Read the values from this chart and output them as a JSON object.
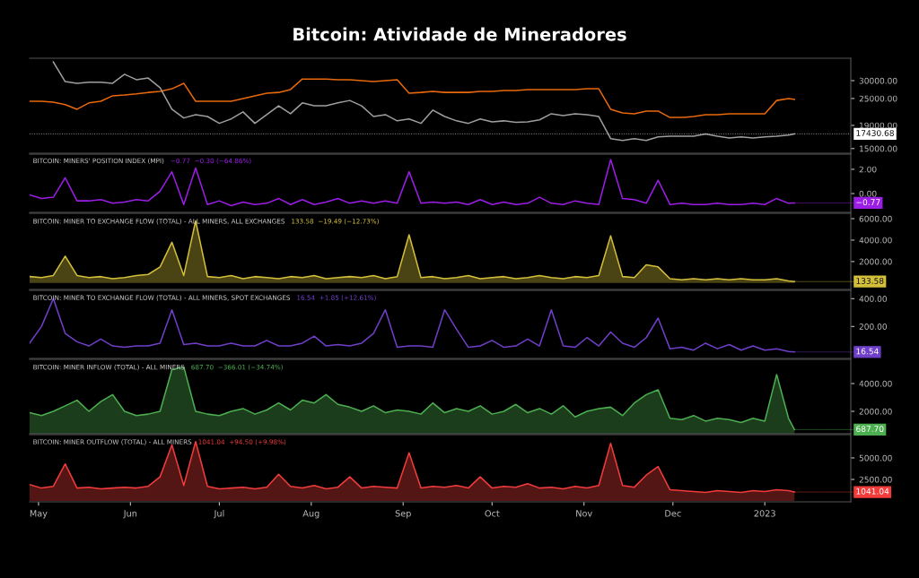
{
  "chart_data": [
    {
      "type": "line",
      "title": "Bitcoin: Atividade de Mineradores",
      "log": "y",
      "x": [
        "2022-04-28",
        "2022-05-02",
        "2022-05-06",
        "2022-05-10",
        "2022-05-14",
        "2022-05-18",
        "2022-05-22",
        "2022-05-26",
        "2022-05-30",
        "2022-06-03",
        "2022-06-07",
        "2022-06-11",
        "2022-06-15",
        "2022-06-19",
        "2022-06-23",
        "2022-06-27",
        "2022-07-01",
        "2022-07-05",
        "2022-07-09",
        "2022-07-13",
        "2022-07-17",
        "2022-07-21",
        "2022-07-25",
        "2022-07-29",
        "2022-08-02",
        "2022-08-06",
        "2022-08-10",
        "2022-08-14",
        "2022-08-18",
        "2022-08-22",
        "2022-08-26",
        "2022-08-30",
        "2022-09-03",
        "2022-09-07",
        "2022-09-11",
        "2022-09-15",
        "2022-09-19",
        "2022-09-23",
        "2022-09-27",
        "2022-10-01",
        "2022-10-05",
        "2022-10-09",
        "2022-10-13",
        "2022-10-17",
        "2022-10-21",
        "2022-10-25",
        "2022-10-29",
        "2022-11-02",
        "2022-11-06",
        "2022-11-10",
        "2022-11-14",
        "2022-11-18",
        "2022-11-22",
        "2022-11-26",
        "2022-11-30",
        "2022-12-04",
        "2022-12-08",
        "2022-12-12",
        "2022-12-16",
        "2022-12-20",
        "2022-12-24",
        "2022-12-28",
        "2023-01-01",
        "2023-01-05",
        "2023-01-09",
        "2023-01-11"
      ],
      "series": [
        {
          "color": "#e8680c",
          "values": [
            24300,
            24300,
            24100,
            23500,
            22400,
            23900,
            24300,
            25700,
            25900,
            26200,
            26600,
            26900,
            27600,
            29200,
            24300,
            24300,
            24300,
            24300,
            25000,
            25700,
            26400,
            26600,
            27400,
            30500,
            30500,
            30500,
            30300,
            30300,
            30000,
            29700,
            30000,
            30300,
            26400,
            26600,
            26900,
            26600,
            26600,
            26600,
            26900,
            26900,
            27100,
            27100,
            27400,
            27400,
            27400,
            27400,
            27400,
            27600,
            27600,
            22400,
            21600,
            21400,
            22000,
            22000,
            20600,
            20600,
            20800,
            21200,
            21200,
            21400,
            21400,
            21400,
            21400,
            24500,
            25000,
            24800
          ]
        },
        {
          "color": "#9e9e9e",
          "values": [
            null,
            null,
            36300,
            29700,
            29200,
            29500,
            29500,
            29200,
            32000,
            30300,
            30800,
            27900,
            22400,
            20500,
            21200,
            20800,
            19400,
            20300,
            21800,
            19400,
            21200,
            23200,
            21400,
            23900,
            23200,
            23200,
            23900,
            24500,
            23200,
            20800,
            21200,
            19900,
            20300,
            19400,
            22200,
            20800,
            19900,
            19400,
            20300,
            19700,
            19900,
            19600,
            19700,
            20100,
            21400,
            21000,
            21400,
            21200,
            20800,
            16600,
            16300,
            16600,
            16300,
            16900,
            17000,
            17000,
            17000,
            17400,
            17000,
            16700,
            16900,
            16700,
            16900,
            17000,
            17200,
            17430.68
          ]
        }
      ],
      "xlim": [
        "2022-04-28",
        "2023-01-30"
      ],
      "ylim": [
        14300,
        37700
      ],
      "yticks": [
        {
          "value": 30000,
          "label": "30000.00"
        },
        {
          "value": 25000,
          "label": "25000.00"
        },
        {
          "value": 19000,
          "label": "19000.00"
        },
        {
          "value": 15000,
          "label": "15000.00"
        }
      ],
      "ref_lines": [
        {
          "axis": "y",
          "value": 17430.68,
          "label": "17430.68",
          "color": "#ffffff",
          "line_style": "dotted"
        }
      ],
      "tick_labels": "y"
    },
    {
      "type": "line",
      "title": "BITCOIN: MINERS' POSITION INDEX (MPI)",
      "subtitle": "−0.77  −0.30 (−64.86%)",
      "color": "#9c1de6",
      "x": [
        "2022-04-28",
        "2022-05-02",
        "2022-05-06",
        "2022-05-10",
        "2022-05-14",
        "2022-05-18",
        "2022-05-22",
        "2022-05-26",
        "2022-05-30",
        "2022-06-03",
        "2022-06-07",
        "2022-06-11",
        "2022-06-15",
        "2022-06-19",
        "2022-06-23",
        "2022-06-27",
        "2022-07-01",
        "2022-07-05",
        "2022-07-09",
        "2022-07-13",
        "2022-07-17",
        "2022-07-21",
        "2022-07-25",
        "2022-07-29",
        "2022-08-02",
        "2022-08-06",
        "2022-08-10",
        "2022-08-14",
        "2022-08-18",
        "2022-08-22",
        "2022-08-26",
        "2022-08-30",
        "2022-09-03",
        "2022-09-07",
        "2022-09-11",
        "2022-09-15",
        "2022-09-19",
        "2022-09-23",
        "2022-09-27",
        "2022-10-01",
        "2022-10-05",
        "2022-10-09",
        "2022-10-13",
        "2022-10-17",
        "2022-10-21",
        "2022-10-25",
        "2022-10-29",
        "2022-11-02",
        "2022-11-06",
        "2022-11-10",
        "2022-11-14",
        "2022-11-18",
        "2022-11-22",
        "2022-11-26",
        "2022-11-30",
        "2022-12-04",
        "2022-12-08",
        "2022-12-12",
        "2022-12-16",
        "2022-12-20",
        "2022-12-24",
        "2022-12-28",
        "2023-01-01",
        "2023-01-05",
        "2023-01-09",
        "2023-01-11"
      ],
      "values": [
        -0.1,
        -0.4,
        -0.3,
        1.3,
        -0.6,
        -0.6,
        -0.5,
        -0.8,
        -0.7,
        -0.5,
        -0.6,
        0.2,
        1.8,
        -0.9,
        2.1,
        -0.9,
        -0.6,
        -1.0,
        -0.7,
        -0.9,
        -0.8,
        -0.4,
        -0.9,
        -0.5,
        -0.9,
        -0.7,
        -0.4,
        -0.8,
        -0.6,
        -0.8,
        -0.6,
        -0.8,
        1.8,
        -0.8,
        -0.7,
        -0.8,
        -0.7,
        -0.9,
        -0.5,
        -0.9,
        -0.7,
        -0.9,
        -0.8,
        -0.3,
        -0.8,
        -0.9,
        -0.6,
        -0.8,
        -0.9,
        2.8,
        -0.4,
        -0.5,
        -0.8,
        1.1,
        -0.9,
        -0.8,
        -0.9,
        -0.9,
        -0.8,
        -0.9,
        -0.9,
        -0.8,
        -0.9,
        -0.4,
        -0.8,
        -0.77
      ],
      "xlim": [
        "2022-04-28",
        "2023-01-30"
      ],
      "ylim": [
        -1.55,
        3.25
      ],
      "yticks": [
        {
          "value": 2,
          "label": "2.00"
        },
        {
          "value": 0,
          "label": "0.00"
        }
      ],
      "annotations": [
        {
          "text": "−0.77",
          "x": "2023-01-11",
          "y": -0.77
        }
      ],
      "tick_labels": "y"
    },
    {
      "type": "area",
      "title": "BITCOIN: MINER TO EXCHANGE FLOW (TOTAL) - ALL MINERS, ALL EXCHANGES",
      "subtitle": "133.58  −19.49 (−12.73%)",
      "color": "#d4bf3a",
      "x": [
        "2022-04-28",
        "2022-05-02",
        "2022-05-06",
        "2022-05-10",
        "2022-05-14",
        "2022-05-18",
        "2022-05-22",
        "2022-05-26",
        "2022-05-30",
        "2022-06-03",
        "2022-06-07",
        "2022-06-11",
        "2022-06-15",
        "2022-06-19",
        "2022-06-23",
        "2022-06-27",
        "2022-07-01",
        "2022-07-05",
        "2022-07-09",
        "2022-07-13",
        "2022-07-17",
        "2022-07-21",
        "2022-07-25",
        "2022-07-29",
        "2022-08-02",
        "2022-08-06",
        "2022-08-10",
        "2022-08-14",
        "2022-08-18",
        "2022-08-22",
        "2022-08-26",
        "2022-08-30",
        "2022-09-03",
        "2022-09-07",
        "2022-09-11",
        "2022-09-15",
        "2022-09-19",
        "2022-09-23",
        "2022-09-27",
        "2022-10-01",
        "2022-10-05",
        "2022-10-09",
        "2022-10-13",
        "2022-10-17",
        "2022-10-21",
        "2022-10-25",
        "2022-10-29",
        "2022-11-02",
        "2022-11-06",
        "2022-11-10",
        "2022-11-14",
        "2022-11-18",
        "2022-11-22",
        "2022-11-26",
        "2022-11-30",
        "2022-12-04",
        "2022-12-08",
        "2022-12-12",
        "2022-12-16",
        "2022-12-20",
        "2022-12-24",
        "2022-12-28",
        "2023-01-01",
        "2023-01-05",
        "2023-01-09",
        "2023-01-11"
      ],
      "values": [
        600,
        500,
        700,
        2500,
        700,
        500,
        600,
        400,
        500,
        700,
        800,
        1500,
        3800,
        700,
        5800,
        600,
        500,
        700,
        400,
        600,
        500,
        400,
        600,
        500,
        700,
        400,
        500,
        600,
        500,
        700,
        400,
        600,
        4500,
        500,
        600,
        400,
        500,
        700,
        400,
        500,
        600,
        400,
        500,
        700,
        500,
        400,
        600,
        500,
        700,
        4400,
        600,
        500,
        1700,
        1500,
        400,
        300,
        400,
        300,
        400,
        300,
        400,
        300,
        300,
        400,
        200,
        133.58
      ],
      "xlim": [
        "2022-04-28",
        "2023-01-30"
      ],
      "ylim": [
        -600,
        6500
      ],
      "yticks": [
        {
          "value": 6000,
          "label": "6000.00"
        },
        {
          "value": 4000,
          "label": "4000.00"
        },
        {
          "value": 2000,
          "label": "2000.00"
        }
      ],
      "annotations": [
        {
          "text": "133.58",
          "x": "2023-01-11",
          "y": 133.58
        }
      ],
      "tick_labels": "y"
    },
    {
      "type": "line",
      "title": "BITCOIN: MINER TO EXCHANGE FLOW (TOTAL) - ALL MINERS, SPOT EXCHANGES",
      "subtitle": "16.54  +1.85 (+12.61%)",
      "color": "#6f3fc9",
      "x": [
        "2022-04-28",
        "2022-05-02",
        "2022-05-06",
        "2022-05-10",
        "2022-05-14",
        "2022-05-18",
        "2022-05-22",
        "2022-05-26",
        "2022-05-30",
        "2022-06-03",
        "2022-06-07",
        "2022-06-11",
        "2022-06-15",
        "2022-06-19",
        "2022-06-23",
        "2022-06-27",
        "2022-07-01",
        "2022-07-05",
        "2022-07-09",
        "2022-07-13",
        "2022-07-17",
        "2022-07-21",
        "2022-07-25",
        "2022-07-29",
        "2022-08-02",
        "2022-08-06",
        "2022-08-10",
        "2022-08-14",
        "2022-08-18",
        "2022-08-22",
        "2022-08-26",
        "2022-08-30",
        "2022-09-03",
        "2022-09-07",
        "2022-09-11",
        "2022-09-15",
        "2022-09-19",
        "2022-09-23",
        "2022-09-27",
        "2022-10-01",
        "2022-10-05",
        "2022-10-09",
        "2022-10-13",
        "2022-10-17",
        "2022-10-21",
        "2022-10-25",
        "2022-10-29",
        "2022-11-02",
        "2022-11-06",
        "2022-11-10",
        "2022-11-14",
        "2022-11-18",
        "2022-11-22",
        "2022-11-26",
        "2022-11-30",
        "2022-12-04",
        "2022-12-08",
        "2022-12-12",
        "2022-12-16",
        "2022-12-20",
        "2022-12-24",
        "2022-12-28",
        "2023-01-01",
        "2023-01-05",
        "2023-01-09",
        "2023-01-11"
      ],
      "values": [
        80,
        200,
        400,
        150,
        90,
        60,
        110,
        60,
        50,
        60,
        60,
        80,
        320,
        70,
        80,
        60,
        60,
        80,
        60,
        60,
        100,
        60,
        60,
        80,
        130,
        60,
        70,
        60,
        80,
        150,
        320,
        50,
        60,
        60,
        50,
        320,
        180,
        50,
        60,
        100,
        50,
        60,
        110,
        60,
        320,
        60,
        50,
        120,
        60,
        160,
        80,
        50,
        120,
        260,
        40,
        50,
        30,
        80,
        40,
        70,
        30,
        60,
        30,
        40,
        20,
        16.54
      ],
      "xlim": [
        "2022-04-28",
        "2023-01-30"
      ],
      "ylim": [
        -30,
        460
      ],
      "yticks": [
        {
          "value": 400,
          "label": "400.00"
        },
        {
          "value": 200,
          "label": "200.00"
        }
      ],
      "annotations": [
        {
          "text": "16.54",
          "x": "2023-01-11",
          "y": 16.54
        }
      ],
      "tick_labels": "y"
    },
    {
      "type": "area",
      "title": "BITCOIN: MINER INFLOW (TOTAL) - ALL MINERS",
      "subtitle": "687.70  −366.01 (−34.74%)",
      "color": "#4caf50",
      "x": [
        "2022-04-28",
        "2022-05-02",
        "2022-05-06",
        "2022-05-10",
        "2022-05-14",
        "2022-05-18",
        "2022-05-22",
        "2022-05-26",
        "2022-05-30",
        "2022-06-03",
        "2022-06-07",
        "2022-06-11",
        "2022-06-15",
        "2022-06-19",
        "2022-06-23",
        "2022-06-27",
        "2022-07-01",
        "2022-07-05",
        "2022-07-09",
        "2022-07-13",
        "2022-07-17",
        "2022-07-21",
        "2022-07-25",
        "2022-07-29",
        "2022-08-02",
        "2022-08-06",
        "2022-08-10",
        "2022-08-14",
        "2022-08-18",
        "2022-08-22",
        "2022-08-26",
        "2022-08-30",
        "2022-09-03",
        "2022-09-07",
        "2022-09-11",
        "2022-09-15",
        "2022-09-19",
        "2022-09-23",
        "2022-09-27",
        "2022-10-01",
        "2022-10-05",
        "2022-10-09",
        "2022-10-13",
        "2022-10-17",
        "2022-10-21",
        "2022-10-25",
        "2022-10-29",
        "2022-11-02",
        "2022-11-06",
        "2022-11-10",
        "2022-11-14",
        "2022-11-18",
        "2022-11-22",
        "2022-11-26",
        "2022-11-30",
        "2022-12-04",
        "2022-12-08",
        "2022-12-12",
        "2022-12-16",
        "2022-12-20",
        "2022-12-24",
        "2022-12-28",
        "2023-01-01",
        "2023-01-05",
        "2023-01-09",
        "2023-01-11"
      ],
      "values": [
        1900,
        1700,
        2000,
        2400,
        2800,
        2000,
        2700,
        3200,
        2000,
        1700,
        1800,
        2000,
        5000,
        5200,
        2000,
        1800,
        1700,
        2000,
        2200,
        1800,
        2100,
        2600,
        2100,
        2800,
        2600,
        3200,
        2500,
        2300,
        2000,
        2400,
        1900,
        2100,
        2000,
        1800,
        2600,
        1900,
        2200,
        2000,
        2400,
        1800,
        2000,
        2500,
        1900,
        2200,
        1800,
        2400,
        1600,
        2000,
        2200,
        2300,
        1700,
        2600,
        3200,
        3550,
        1500,
        1400,
        1700,
        1300,
        1500,
        1400,
        1200,
        1500,
        1300,
        4650,
        1500,
        687.7
      ],
      "xlim": [
        "2022-04-28",
        "2023-01-30"
      ],
      "ylim": [
        390,
        5740
      ],
      "yticks": [
        {
          "value": 4000,
          "label": "4000.00"
        },
        {
          "value": 2000,
          "label": "2000.00"
        }
      ],
      "annotations": [
        {
          "text": "687.70",
          "x": "2023-01-11",
          "y": 687.7
        }
      ],
      "tick_labels": "y"
    },
    {
      "type": "area",
      "title": "BITCOIN: MINER OUTFLOW (TOTAL) - ALL MINERS",
      "subtitle": "1041.04  +94.50 (+9.98%)",
      "color": "#f23c3c",
      "x": [
        "2022-04-28",
        "2022-05-02",
        "2022-05-06",
        "2022-05-10",
        "2022-05-14",
        "2022-05-18",
        "2022-05-22",
        "2022-05-26",
        "2022-05-30",
        "2022-06-03",
        "2022-06-07",
        "2022-06-11",
        "2022-06-15",
        "2022-06-19",
        "2022-06-23",
        "2022-06-27",
        "2022-07-01",
        "2022-07-05",
        "2022-07-09",
        "2022-07-13",
        "2022-07-17",
        "2022-07-21",
        "2022-07-25",
        "2022-07-29",
        "2022-08-02",
        "2022-08-06",
        "2022-08-10",
        "2022-08-14",
        "2022-08-18",
        "2022-08-22",
        "2022-08-26",
        "2022-08-30",
        "2022-09-03",
        "2022-09-07",
        "2022-09-11",
        "2022-09-15",
        "2022-09-19",
        "2022-09-23",
        "2022-09-27",
        "2022-10-01",
        "2022-10-05",
        "2022-10-09",
        "2022-10-13",
        "2022-10-17",
        "2022-10-21",
        "2022-10-25",
        "2022-10-29",
        "2022-11-02",
        "2022-11-06",
        "2022-11-10",
        "2022-11-14",
        "2022-11-18",
        "2022-11-22",
        "2022-11-26",
        "2022-11-30",
        "2022-12-04",
        "2022-12-08",
        "2022-12-12",
        "2022-12-16",
        "2022-12-20",
        "2022-12-24",
        "2022-12-28",
        "2023-01-01",
        "2023-01-05",
        "2023-01-09",
        "2023-01-11"
      ],
      "values": [
        1900,
        1500,
        1700,
        4300,
        1500,
        1600,
        1400,
        1500,
        1600,
        1500,
        1700,
        2800,
        6500,
        1800,
        6900,
        1700,
        1400,
        1500,
        1600,
        1400,
        1600,
        3100,
        1700,
        1500,
        1800,
        1400,
        1600,
        2800,
        1500,
        1700,
        1600,
        1500,
        5600,
        1500,
        1700,
        1600,
        1800,
        1500,
        2800,
        1500,
        1700,
        1600,
        2000,
        1500,
        1600,
        1400,
        1700,
        1500,
        1800,
        6700,
        1800,
        1600,
        3000,
        4000,
        1300,
        1200,
        1100,
        1000,
        1200,
        1100,
        1000,
        1200,
        1100,
        1300,
        1200,
        1041.04
      ],
      "xlim": [
        "2022-04-28",
        "2023-01-30"
      ],
      "ylim": [
        -100,
        7700
      ],
      "xticks": [
        {
          "value": "2022-05-01",
          "label": "May"
        },
        {
          "value": "2022-06-01",
          "label": "Jun"
        },
        {
          "value": "2022-07-01",
          "label": "Jul"
        },
        {
          "value": "2022-08-01",
          "label": "Aug"
        },
        {
          "value": "2022-09-01",
          "label": "Sep"
        },
        {
          "value": "2022-10-01",
          "label": "Oct"
        },
        {
          "value": "2022-11-01",
          "label": "Nov"
        },
        {
          "value": "2022-12-01",
          "label": "Dec"
        },
        {
          "value": "2023-01-01",
          "label": "2023"
        }
      ],
      "yticks": [
        {
          "value": 5000,
          "label": "5000.00"
        },
        {
          "value": 2500,
          "label": "2500.00"
        }
      ],
      "annotations": [
        {
          "text": "1041.04",
          "x": "2023-01-11",
          "y": 1041.04
        }
      ]
    }
  ]
}
